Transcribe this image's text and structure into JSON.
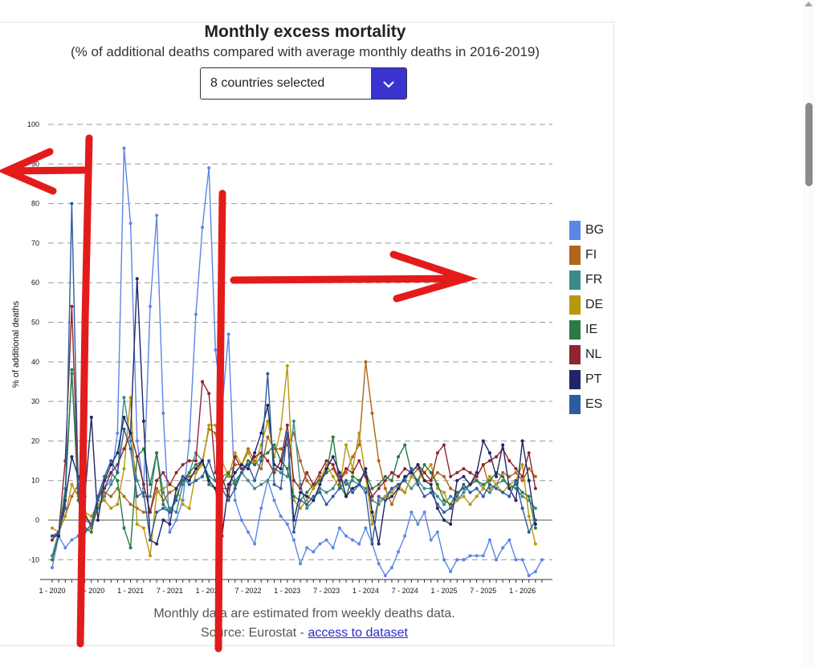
{
  "page": {
    "title": "Monthly excess mortality",
    "subtitle": "(% of additional deaths compared with average monthly deaths in 2016-2019)",
    "select_label": "8 countries selected",
    "footnote": "Monthly data are estimated from weekly deaths data.",
    "source_prefix": "Source: Eurostat - ",
    "source_link": "access to dataset"
  },
  "colors": {
    "select_button": "#3a34cf",
    "annotation_red": "#e31b1b",
    "grid": "#9a9a9a",
    "zero_line": "#555555"
  },
  "chart_data": {
    "type": "line",
    "title": "Monthly excess mortality",
    "ylabel": "% of additional deaths",
    "ylim": [
      -15,
      100
    ],
    "yticks": [
      -10,
      0,
      10,
      20,
      30,
      40,
      50,
      60,
      70,
      80,
      90,
      100
    ],
    "grid": true,
    "legend_position": "right",
    "xticks": [
      "1 - 2020",
      "7 - 2020",
      "1 - 2021",
      "7 - 2021",
      "1 - 2022",
      "7 - 2022",
      "1 - 2023",
      "7 - 2023",
      "1 - 2024",
      "7 - 2024",
      "1 - 2025",
      "7 - 2025",
      "1 - 2026"
    ],
    "x_start": "2020-01",
    "series": [
      {
        "name": "BG",
        "color": "#5b86e5",
        "values": [
          -12,
          -4,
          -7,
          -5,
          -4,
          -3,
          -2,
          5,
          8,
          10,
          22,
          94,
          75,
          20,
          8,
          54,
          77,
          27,
          -3,
          0,
          5,
          20,
          52,
          74,
          89,
          43,
          28,
          47,
          5,
          0,
          -3,
          -6,
          3,
          10,
          5,
          1,
          -1,
          -5,
          -11,
          -7,
          -8,
          -6,
          -5,
          -7,
          -2,
          -4,
          -5,
          -6,
          -2,
          -6,
          -11,
          -14,
          -12,
          -8,
          -4,
          2,
          -1,
          2,
          -5,
          -3,
          -10,
          -13,
          -10,
          -10,
          -9,
          -9,
          -9,
          -5,
          -10,
          -7,
          -5,
          -10,
          -10,
          -14,
          -13,
          -10
        ]
      },
      {
        "name": "FI",
        "color": "#b0651a",
        "values": [
          -4,
          -3,
          1,
          6,
          9,
          2,
          -2,
          3,
          7,
          6,
          8,
          6,
          4,
          3,
          2,
          2,
          8,
          5,
          7,
          8,
          10,
          11,
          12,
          15,
          23,
          22,
          11,
          12,
          14,
          14,
          18,
          15,
          13,
          21,
          18,
          18,
          19,
          22,
          15,
          10,
          8,
          11,
          12,
          13,
          10,
          12,
          16,
          19,
          40,
          27,
          15,
          8,
          4,
          8,
          7,
          11,
          13,
          10,
          10,
          12,
          11,
          8,
          7,
          8,
          9,
          11,
          14,
          8,
          9,
          12,
          11,
          12,
          10,
          13,
          11
        ]
      },
      {
        "name": "FR",
        "color": "#3a8a86",
        "values": [
          -9,
          -3,
          8,
          37,
          9,
          0,
          -1,
          3,
          6,
          9,
          12,
          31,
          20,
          10,
          6,
          6,
          17,
          7,
          3,
          2,
          9,
          12,
          17,
          15,
          11,
          10,
          8,
          8,
          10,
          12,
          10,
          8,
          9,
          10,
          13,
          12,
          11,
          25,
          9,
          3,
          5,
          8,
          7,
          8,
          11,
          9,
          10,
          9,
          8,
          5,
          4,
          6,
          8,
          9,
          10,
          8,
          10,
          8,
          8,
          6,
          4,
          6,
          5,
          7,
          9,
          10,
          8,
          7,
          9,
          10,
          9,
          8,
          6,
          5,
          3
        ]
      },
      {
        "name": "DE",
        "color": "#b8980c",
        "values": [
          -2,
          -3,
          1,
          9,
          6,
          2,
          1,
          4,
          5,
          3,
          4,
          13,
          31,
          -1,
          -2,
          -9,
          7,
          8,
          9,
          8,
          4,
          3,
          12,
          14,
          24,
          24,
          15,
          11,
          17,
          14,
          17,
          14,
          19,
          25,
          16,
          23,
          39,
          5,
          3,
          5,
          8,
          10,
          14,
          11,
          8,
          19,
          13,
          22,
          11,
          -1,
          5,
          6,
          7,
          9,
          7,
          11,
          10,
          12,
          14,
          8,
          7,
          3,
          5,
          6,
          4,
          6,
          8,
          11,
          9,
          7,
          9,
          10,
          14,
          1,
          -6
        ]
      },
      {
        "name": "IE",
        "color": "#2a7a44",
        "values": [
          -10,
          -4,
          6,
          38,
          5,
          -2,
          -3,
          5,
          10,
          12,
          10,
          -2,
          -7,
          16,
          18,
          9,
          17,
          4,
          2,
          6,
          10,
          12,
          14,
          15,
          9,
          8,
          9,
          12,
          9,
          12,
          15,
          14,
          16,
          17,
          19,
          15,
          13,
          6,
          5,
          7,
          9,
          10,
          12,
          21,
          9,
          6,
          11,
          10,
          12,
          8,
          9,
          11,
          10,
          16,
          19,
          12,
          10,
          14,
          12,
          9,
          5,
          4,
          7,
          8,
          9,
          10,
          9,
          10,
          12,
          11,
          8,
          9,
          7,
          6,
          -2
        ]
      },
      {
        "name": "NL",
        "color": "#8e2530",
        "values": [
          -5,
          -3,
          15,
          54,
          7,
          1,
          -1,
          6,
          8,
          12,
          14,
          18,
          22,
          16,
          9,
          2,
          10,
          12,
          9,
          12,
          14,
          15,
          15,
          35,
          32,
          12,
          11,
          6,
          16,
          13,
          14,
          16,
          17,
          15,
          12,
          15,
          24,
          10,
          8,
          12,
          9,
          12,
          15,
          14,
          10,
          13,
          12,
          15,
          11,
          6,
          8,
          10,
          12,
          11,
          13,
          12,
          14,
          12,
          10,
          17,
          19,
          11,
          12,
          13,
          12,
          11,
          14,
          15,
          16,
          18,
          15,
          13,
          11,
          17,
          8
        ]
      },
      {
        "name": "PT",
        "color": "#1f2568",
        "values": [
          -4,
          -4,
          5,
          16,
          11,
          6,
          26,
          0,
          10,
          14,
          17,
          26,
          22,
          61,
          25,
          -5,
          -6,
          0,
          -1,
          8,
          11,
          10,
          13,
          15,
          10,
          8,
          -4,
          9,
          12,
          14,
          13,
          17,
          22,
          29,
          14,
          13,
          22,
          0,
          7,
          6,
          5,
          9,
          13,
          16,
          12,
          6,
          8,
          9,
          13,
          2,
          -6,
          5,
          6,
          8,
          11,
          12,
          14,
          10,
          9,
          3,
          0,
          -1,
          10,
          11,
          9,
          12,
          20,
          17,
          11,
          19,
          8,
          5,
          20,
          10,
          -1
        ]
      },
      {
        "name": "ES",
        "color": "#2d5c9e",
        "values": [
          -4,
          -3,
          3,
          80,
          8,
          -3,
          -1,
          6,
          11,
          15,
          12,
          23,
          18,
          6,
          7,
          -5,
          2,
          3,
          2,
          5,
          11,
          9,
          10,
          11,
          15,
          10,
          8,
          5,
          8,
          12,
          14,
          10,
          15,
          37,
          9,
          8,
          22,
          -3,
          5,
          4,
          6,
          7,
          4,
          6,
          8,
          10,
          7,
          9,
          7,
          -6,
          6,
          5,
          8,
          9,
          10,
          13,
          9,
          6,
          7,
          4,
          2,
          3,
          6,
          9,
          7,
          8,
          6,
          9,
          8,
          7,
          6,
          10,
          3,
          -3,
          0
        ]
      }
    ]
  }
}
